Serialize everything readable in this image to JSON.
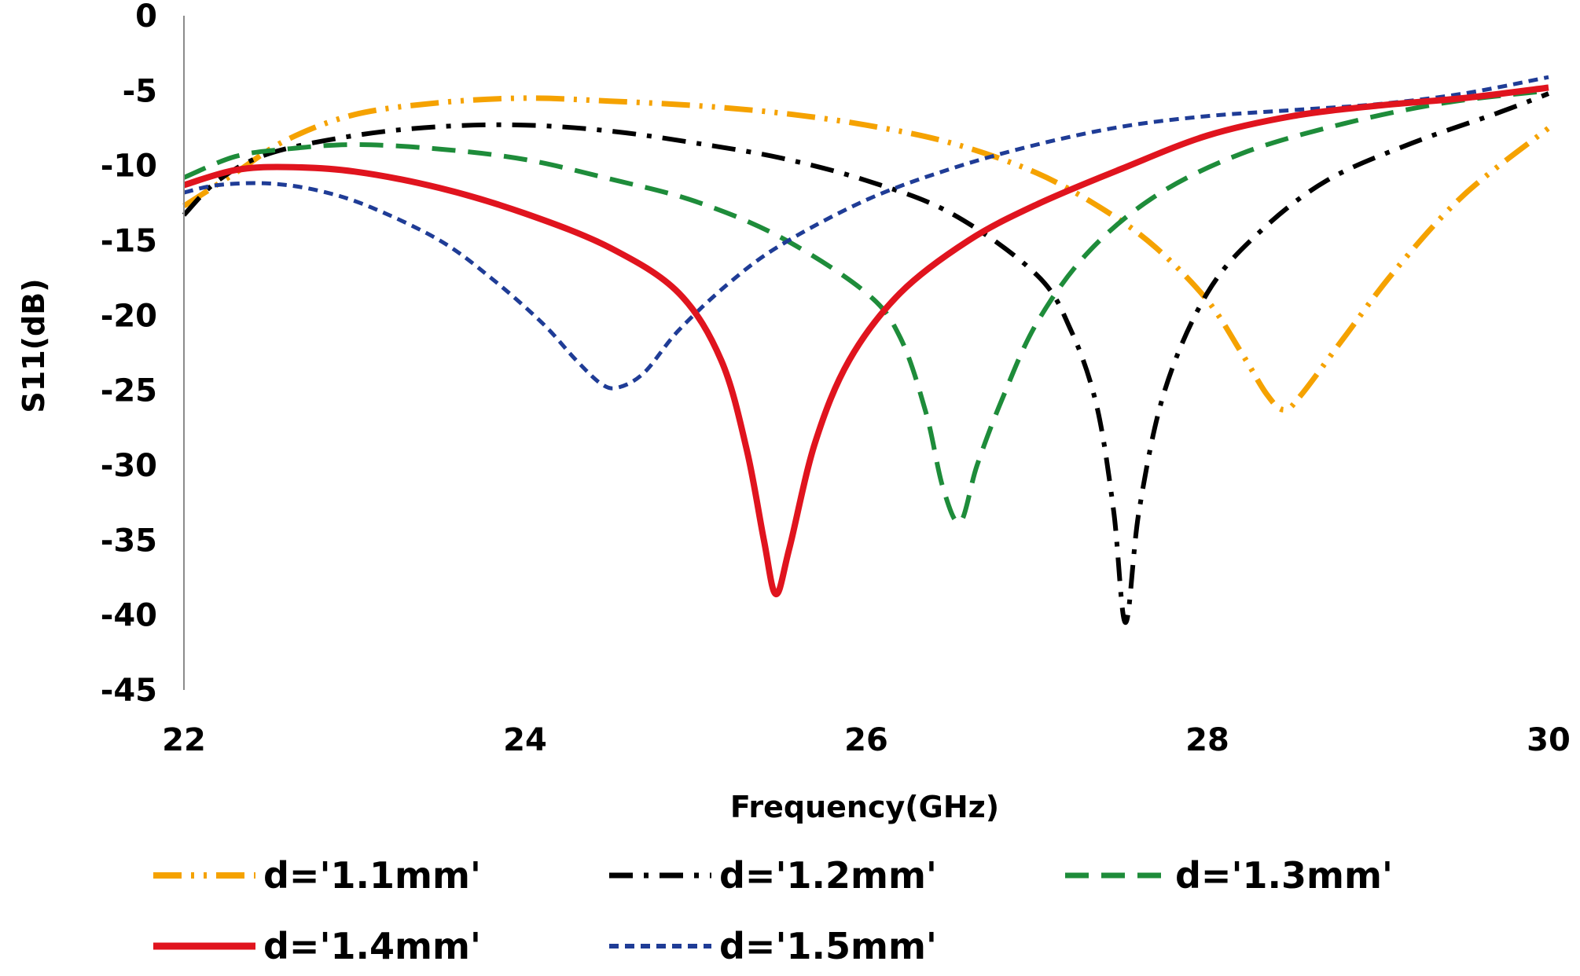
{
  "chart_data": {
    "type": "line",
    "title": "",
    "xlabel": "Frequency(GHz)",
    "ylabel": "S11(dB)",
    "xlim": [
      22,
      30
    ],
    "ylim": [
      -45,
      0
    ],
    "xticks": [
      22,
      24,
      26,
      28,
      30
    ],
    "yticks": [
      0,
      -5,
      -10,
      -15,
      -20,
      -25,
      -30,
      -35,
      -40,
      -45
    ],
    "xtick_labels": [
      "22",
      "24",
      "26",
      "28",
      "30"
    ],
    "ytick_labels": [
      "0",
      "-5",
      "-10",
      "-15",
      "-20",
      "-25",
      "-30",
      "-35",
      "-40",
      "-45"
    ],
    "grid": false,
    "legend_position": "bottom",
    "series": [
      {
        "name": "d='1.1mm'",
        "color": "#F5A200",
        "style": "dash-dot-dot",
        "points": [
          [
            22,
            -12.7
          ],
          [
            22.3,
            -10.5
          ],
          [
            22.6,
            -8.3
          ],
          [
            23,
            -6.6
          ],
          [
            23.5,
            -5.8
          ],
          [
            24,
            -5.5
          ],
          [
            24.5,
            -5.7
          ],
          [
            25,
            -6.0
          ],
          [
            25.5,
            -6.5
          ],
          [
            26,
            -7.3
          ],
          [
            26.5,
            -8.5
          ],
          [
            27,
            -10.5
          ],
          [
            27.4,
            -13.0
          ],
          [
            27.7,
            -15.5
          ],
          [
            28,
            -19.0
          ],
          [
            28.2,
            -22.5
          ],
          [
            28.35,
            -25.3
          ],
          [
            28.45,
            -26.3
          ],
          [
            28.55,
            -25.3
          ],
          [
            28.8,
            -21.5
          ],
          [
            29.1,
            -17.0
          ],
          [
            29.5,
            -12.0
          ],
          [
            30,
            -7.5
          ]
        ]
      },
      {
        "name": "d='1.2mm'",
        "color": "#000000",
        "style": "dash-dot",
        "points": [
          [
            22,
            -13.3
          ],
          [
            22.2,
            -11.0
          ],
          [
            22.5,
            -9.2
          ],
          [
            23,
            -8.0
          ],
          [
            23.5,
            -7.4
          ],
          [
            24,
            -7.3
          ],
          [
            24.5,
            -7.7
          ],
          [
            25,
            -8.5
          ],
          [
            25.5,
            -9.5
          ],
          [
            26,
            -11.0
          ],
          [
            26.5,
            -13.2
          ],
          [
            27,
            -17.3
          ],
          [
            27.2,
            -21.0
          ],
          [
            27.35,
            -26.0
          ],
          [
            27.45,
            -33.0
          ],
          [
            27.52,
            -40.5
          ],
          [
            27.6,
            -33.0
          ],
          [
            27.75,
            -25.0
          ],
          [
            28,
            -18.5
          ],
          [
            28.3,
            -14.5
          ],
          [
            28.7,
            -11.0
          ],
          [
            29.2,
            -8.5
          ],
          [
            29.7,
            -6.5
          ],
          [
            30,
            -5.2
          ]
        ]
      },
      {
        "name": "d='1.3mm'",
        "color": "#1E8C3A",
        "style": "dash",
        "points": [
          [
            22,
            -10.8
          ],
          [
            22.3,
            -9.4
          ],
          [
            22.6,
            -8.9
          ],
          [
            23,
            -8.6
          ],
          [
            23.5,
            -8.9
          ],
          [
            24,
            -9.6
          ],
          [
            24.5,
            -10.9
          ],
          [
            25,
            -12.4
          ],
          [
            25.5,
            -14.8
          ],
          [
            26,
            -18.5
          ],
          [
            26.2,
            -21.5
          ],
          [
            26.35,
            -26.5
          ],
          [
            26.45,
            -31.5
          ],
          [
            26.55,
            -33.8
          ],
          [
            26.65,
            -30.0
          ],
          [
            26.8,
            -25.5
          ],
          [
            27,
            -20.5
          ],
          [
            27.3,
            -15.8
          ],
          [
            27.7,
            -12.0
          ],
          [
            28.2,
            -9.2
          ],
          [
            28.8,
            -7.2
          ],
          [
            29.4,
            -5.8
          ],
          [
            30,
            -5.0
          ]
        ]
      },
      {
        "name": "d='1.4mm'",
        "color": "#E0141E",
        "style": "solid",
        "points": [
          [
            22,
            -11.3
          ],
          [
            22.3,
            -10.3
          ],
          [
            22.6,
            -10.1
          ],
          [
            23,
            -10.4
          ],
          [
            23.5,
            -11.5
          ],
          [
            24,
            -13.2
          ],
          [
            24.5,
            -15.5
          ],
          [
            24.9,
            -18.5
          ],
          [
            25.15,
            -23.0
          ],
          [
            25.3,
            -29.0
          ],
          [
            25.4,
            -35.0
          ],
          [
            25.47,
            -38.6
          ],
          [
            25.55,
            -35.5
          ],
          [
            25.7,
            -28.5
          ],
          [
            25.9,
            -23.0
          ],
          [
            26.2,
            -18.5
          ],
          [
            26.6,
            -15.0
          ],
          [
            27,
            -12.6
          ],
          [
            27.5,
            -10.2
          ],
          [
            28,
            -8.0
          ],
          [
            28.5,
            -6.7
          ],
          [
            29,
            -6.0
          ],
          [
            29.5,
            -5.5
          ],
          [
            30,
            -4.8
          ]
        ]
      },
      {
        "name": "d='1.5mm'",
        "color": "#1F3C96",
        "style": "short-dash",
        "points": [
          [
            22,
            -11.8
          ],
          [
            22.2,
            -11.3
          ],
          [
            22.5,
            -11.2
          ],
          [
            22.8,
            -11.7
          ],
          [
            23.1,
            -12.8
          ],
          [
            23.5,
            -15.0
          ],
          [
            23.8,
            -17.5
          ],
          [
            24.1,
            -20.5
          ],
          [
            24.3,
            -23.0
          ],
          [
            24.45,
            -24.6
          ],
          [
            24.55,
            -24.8
          ],
          [
            24.7,
            -23.8
          ],
          [
            24.9,
            -21.0
          ],
          [
            25.2,
            -17.8
          ],
          [
            25.5,
            -15.3
          ],
          [
            26,
            -12.3
          ],
          [
            26.5,
            -10.2
          ],
          [
            27,
            -8.6
          ],
          [
            27.5,
            -7.4
          ],
          [
            28,
            -6.7
          ],
          [
            28.5,
            -6.3
          ],
          [
            29,
            -5.9
          ],
          [
            29.5,
            -5.2
          ],
          [
            30,
            -4.1
          ]
        ]
      }
    ]
  }
}
